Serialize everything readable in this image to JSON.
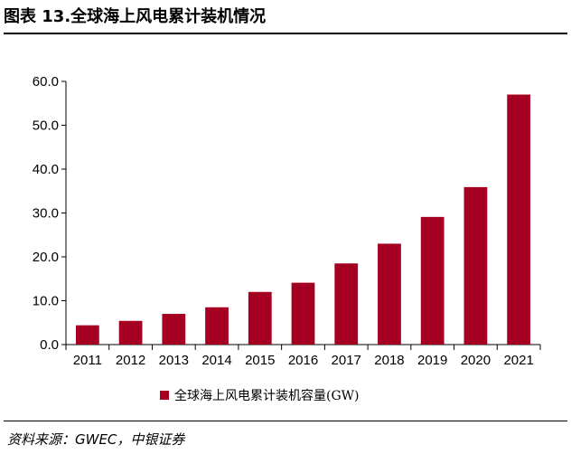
{
  "figure": {
    "title": "图表 13.全球海上风电累计装机情况",
    "source": "资料来源：GWEC，中银证券"
  },
  "colors": {
    "bar": "#a50021",
    "axis": "#000000"
  },
  "chart_data": {
    "type": "bar",
    "categories": [
      "2011",
      "2012",
      "2013",
      "2014",
      "2015",
      "2016",
      "2017",
      "2018",
      "2019",
      "2020",
      "2021"
    ],
    "series": [
      {
        "name": "全球海上风电累计装机容量(GW)",
        "values": [
          4.4,
          5.4,
          7.0,
          8.5,
          12.0,
          14.1,
          18.5,
          23.0,
          29.1,
          35.9,
          57.0
        ]
      }
    ],
    "ylim": [
      0,
      60
    ],
    "yticks": [
      "0.0",
      "10.0",
      "20.0",
      "30.0",
      "40.0",
      "50.0",
      "60.0"
    ],
    "grid": false,
    "legend": "bottom-center"
  }
}
